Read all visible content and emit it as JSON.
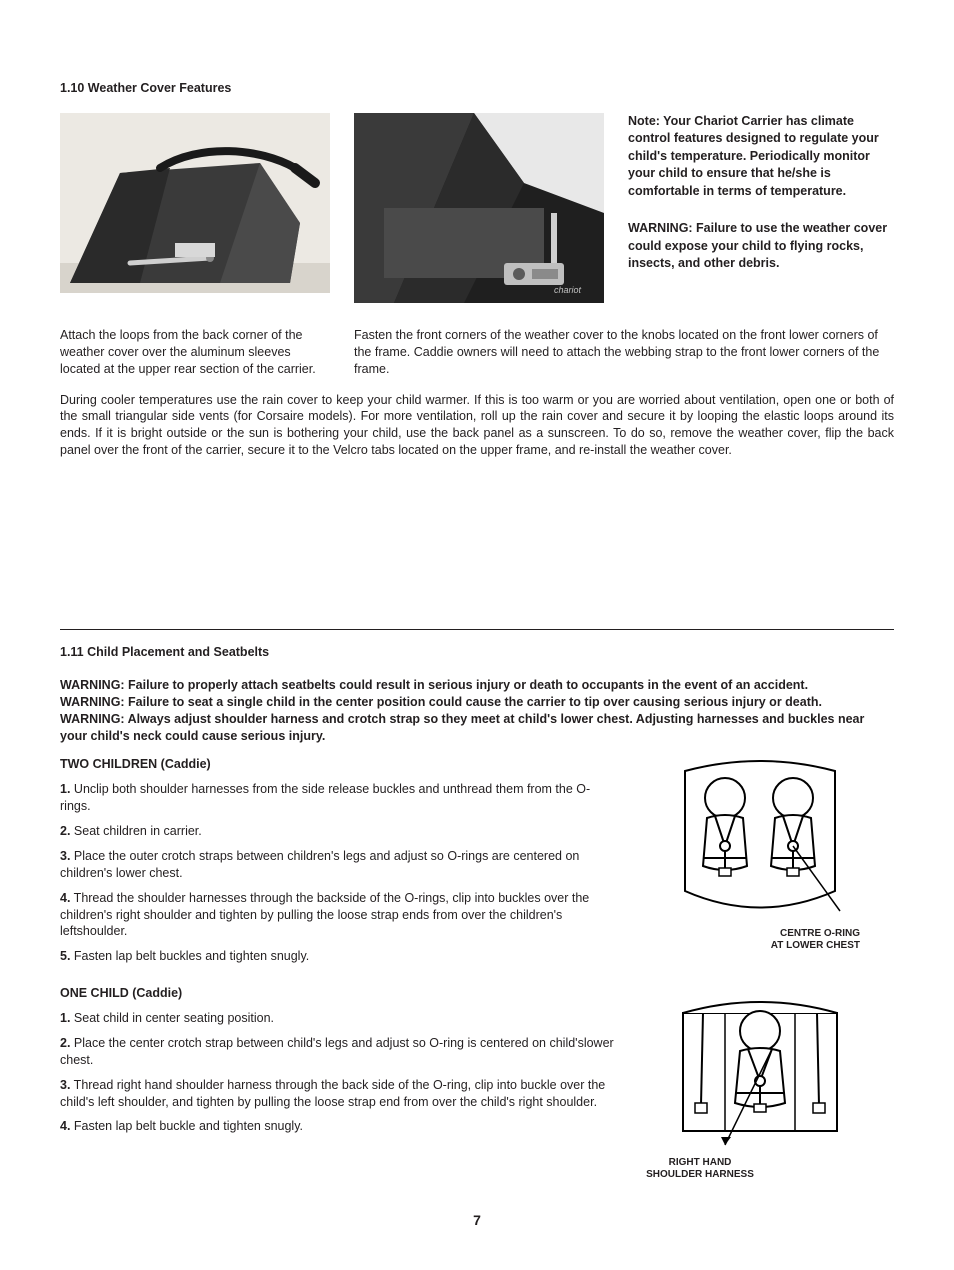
{
  "page_number": "7",
  "section_110": {
    "title": "1.10 Weather Cover Features",
    "caption_left": "Attach the loops from the back corner of the weather cover over the aluminum sleeves located at the upper rear section of the carrier.",
    "caption_right": "Fasten the front corners of the weather cover to the knobs located on the front lower corners of the frame. Caddie owners will need to attach the webbing strap to the front lower corners of the frame.",
    "note": "Note: Your Chariot Carrier has climate control features designed to regulate your child's temperature. Periodically monitor your child to ensure that he/she is comfortable in terms of temperature.",
    "warning": "WARNING: Failure to use the weather cover could expose your child to flying rocks, insects, and other debris.",
    "body": "During cooler temperatures use the rain cover to keep your child warmer.  If this is too warm or you are worried about ventilation, open one or both of the small triangular side vents (for Corsaire models). For more ventilation, roll up the rain cover and secure it by looping the elastic loops around its ends.  If it is bright outside or the sun is bothering your child, use the back panel as a sunscreen.  To do so, remove the weather cover, flip the back panel over the front of the carrier, secure it to the Velcro tabs located on the upper frame, and re-install the weather cover."
  },
  "section_111": {
    "title": "1.11 Child Placement and Seatbelts",
    "warning1": "WARNING: Failure to properly attach seatbelts could result in serious injury or death to occupants in the event of an accident.",
    "warning2": "WARNING: Failure to seat a single child in the center position could cause the carrier to tip over causing serious injury or death.",
    "warning3": "WARNING: Always adjust shoulder harness and crotch strap so they meet at child's lower chest. Adjusting harnesses and buckles near your child's neck could cause serious injury.",
    "two_children": {
      "heading": "TWO CHILDREN (Caddie)",
      "steps": [
        "Unclip both shoulder harnesses from the side release buckles and unthread them from the O-rings.",
        "Seat children in carrier.",
        "Place the outer crotch straps between children's legs and adjust so O-rings are centered on children's lower chest.",
        "Thread the shoulder harnesses through the backside of the O-rings, clip into buckles over the children's right shoulder and tighten by pulling the loose strap ends from over the children's leftshoulder.",
        "Fasten lap belt buckles and tighten snugly."
      ],
      "diagram_label_line1": "CENTRE O-RING",
      "diagram_label_line2": "AT LOWER CHEST"
    },
    "one_child": {
      "heading": "ONE CHILD (Caddie)",
      "steps": [
        "Seat child in center seating position.",
        "Place the center crotch strap between child's legs and adjust so O-ring is centered on child'slower chest.",
        "Thread right hand shoulder harness through the back side of the O-ring, clip into buckle over the child's left shoulder, and tighten by pulling the loose strap end from over the child's right shoulder.",
        "Fasten lap belt buckle and tighten snugly."
      ],
      "diagram_label_line1": "RIGHT HAND",
      "diagram_label_line2": "SHOULDER HARNESS"
    }
  },
  "photo_colors": {
    "room_bg": "#e8e6e1",
    "fabric_dark": "#2b2b2b",
    "fabric_mid": "#4a4a4a",
    "metal": "#d0d0d0",
    "black": "#111111",
    "white": "#ffffff"
  }
}
